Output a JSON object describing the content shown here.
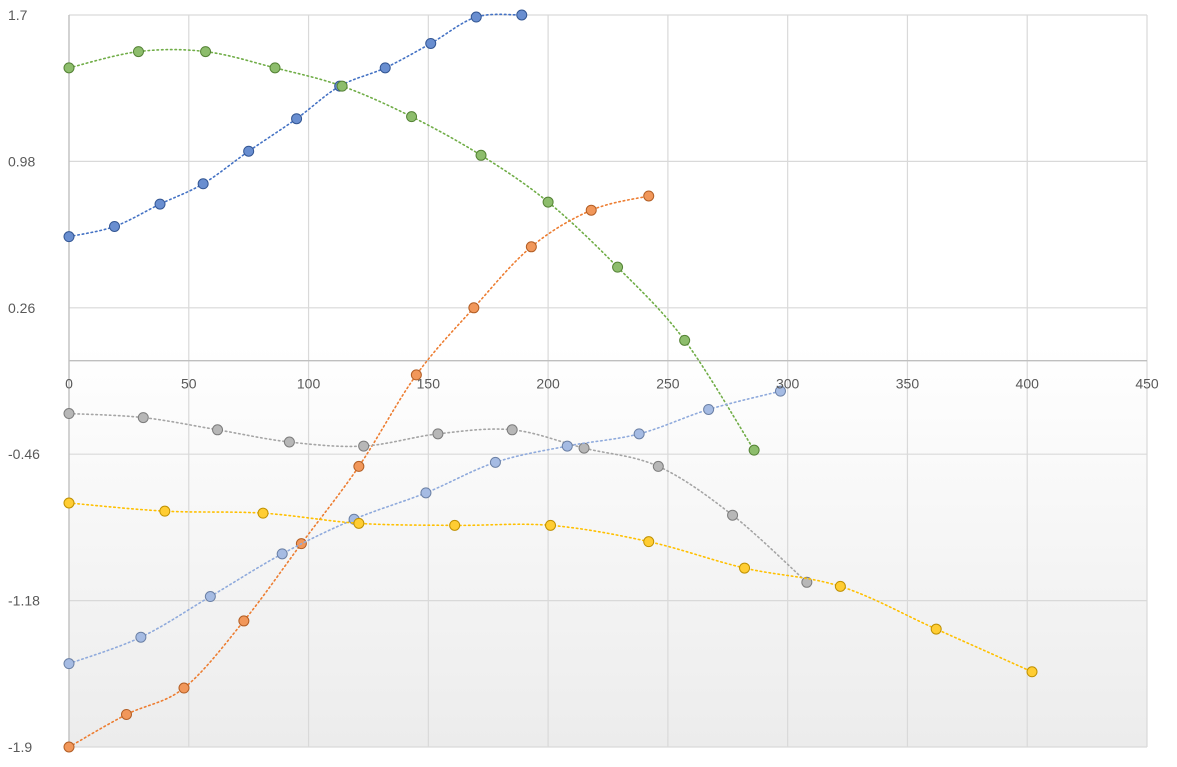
{
  "chart_data": {
    "type": "scatter",
    "title": "",
    "xlabel": "",
    "ylabel": "",
    "xlim": [
      0,
      450
    ],
    "ylim": [
      -1.9,
      1.7
    ],
    "x_ticks": [
      "0",
      "50",
      "100",
      "150",
      "200",
      "250",
      "300",
      "350",
      "400",
      "450"
    ],
    "y_ticks": [
      "1.7",
      "0.98",
      "0.26",
      "-0.46",
      "-1.18",
      "-1.9"
    ],
    "grid": true,
    "series": [
      {
        "color": "#4472C4",
        "x": [
          0,
          19,
          38,
          56,
          75,
          95,
          113,
          132,
          151,
          170,
          189
        ],
        "y": [
          0.61,
          0.66,
          0.77,
          0.87,
          1.03,
          1.19,
          1.35,
          1.44,
          1.56,
          1.69,
          1.7
        ]
      },
      {
        "color": "#70AD47",
        "x": [
          0,
          29,
          57,
          86,
          114,
          143,
          172,
          200,
          229,
          257,
          286
        ],
        "y": [
          1.44,
          1.52,
          1.52,
          1.44,
          1.35,
          1.2,
          1.01,
          0.78,
          0.46,
          0.1,
          -0.44
        ]
      },
      {
        "color": "#ED7D31",
        "x": [
          0,
          24,
          48,
          73,
          97,
          121,
          145,
          169,
          193,
          218,
          242
        ],
        "y": [
          -1.9,
          -1.74,
          -1.61,
          -1.28,
          -0.9,
          -0.52,
          -0.07,
          0.26,
          0.56,
          0.74,
          0.81
        ]
      },
      {
        "color": "#A5A5A5",
        "x": [
          0,
          31,
          62,
          92,
          123,
          154,
          185,
          215,
          246,
          277,
          308
        ],
        "y": [
          -0.26,
          -0.28,
          -0.34,
          -0.4,
          -0.42,
          -0.36,
          -0.34,
          -0.43,
          -0.52,
          -0.76,
          -1.09
        ]
      },
      {
        "color": "#8FAADC",
        "x": [
          0,
          30,
          59,
          89,
          119,
          149,
          178,
          208,
          238,
          267,
          297
        ],
        "y": [
          -1.49,
          -1.36,
          -1.16,
          -0.95,
          -0.78,
          -0.65,
          -0.5,
          -0.42,
          -0.36,
          -0.24,
          -0.15
        ]
      },
      {
        "color": "#FFC000",
        "x": [
          0,
          40,
          81,
          121,
          161,
          201,
          242,
          282,
          322,
          362,
          402
        ],
        "y": [
          -0.7,
          -0.74,
          -0.75,
          -0.8,
          -0.81,
          -0.81,
          -0.89,
          -1.02,
          -1.11,
          -1.32,
          -1.53
        ]
      }
    ]
  }
}
